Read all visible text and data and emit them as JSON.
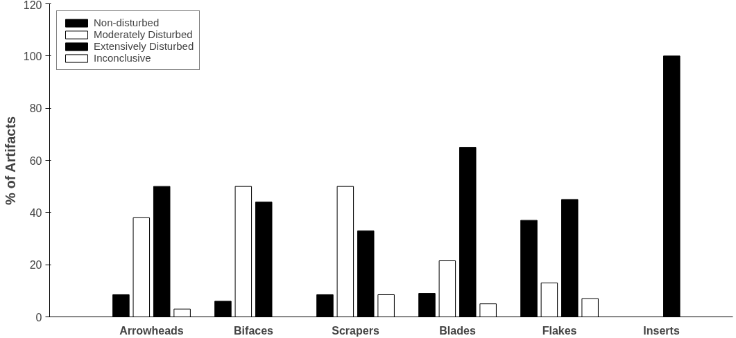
{
  "chart_data": {
    "type": "bar",
    "ylabel": "% of Artifacts",
    "categories": [
      "Arrowheads",
      "Bifaces",
      "Scrapers",
      "Blades",
      "Flakes",
      "Inserts"
    ],
    "series": [
      {
        "name": "Non-disturbed",
        "color": "#000000",
        "values": [
          8.5,
          6,
          8.5,
          9,
          37,
          0
        ]
      },
      {
        "name": "Moderately Disturbed",
        "color": "#ffffff",
        "values": [
          38,
          50,
          50,
          21.5,
          13,
          0
        ]
      },
      {
        "name": "Extensively Disturbed",
        "color": "#000000",
        "values": [
          50,
          44,
          33,
          65,
          45,
          100
        ]
      },
      {
        "name": "Inconclusive",
        "color": "#ffffff",
        "values": [
          3,
          0,
          8.5,
          5,
          7,
          0
        ]
      }
    ],
    "ylim": [
      0,
      120
    ],
    "yticks": [
      0,
      20,
      40,
      60,
      80,
      100,
      120
    ],
    "grid": false,
    "legend": "top left"
  }
}
